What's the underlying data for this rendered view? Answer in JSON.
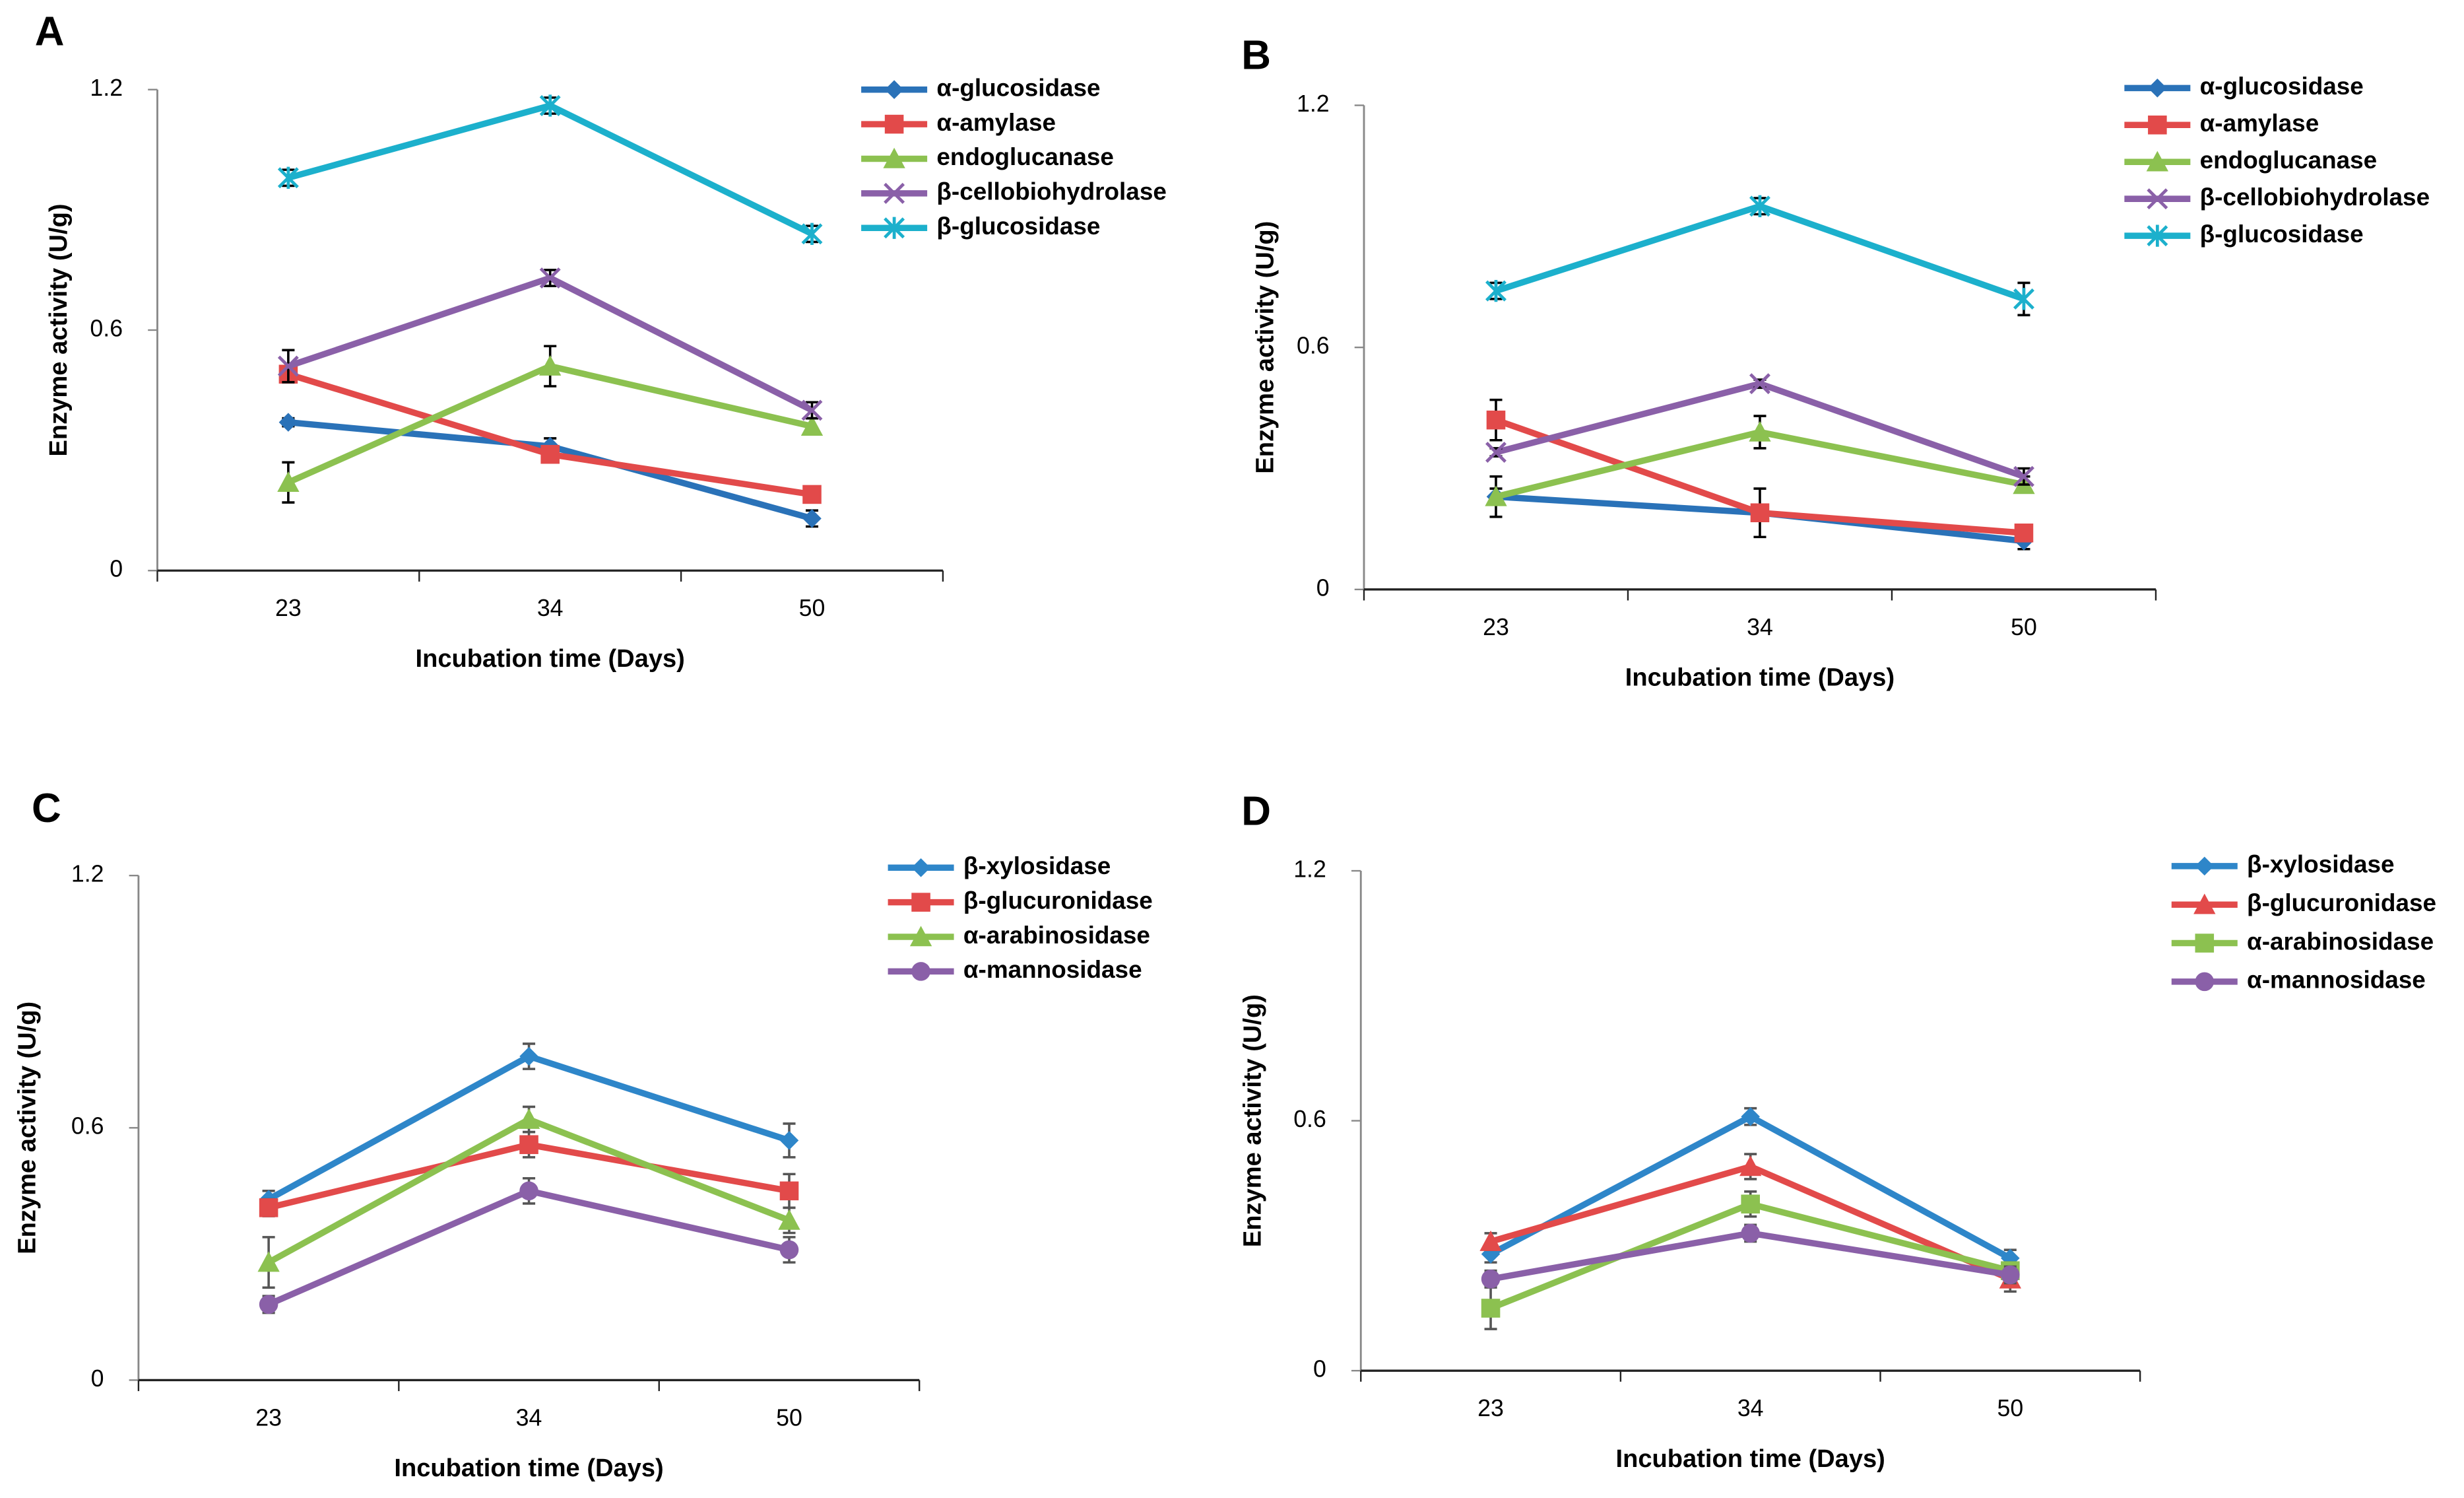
{
  "chart_data": [
    {
      "type": "line",
      "panel": "A",
      "x_label": "Incubation time (Days)",
      "y_label": "Enzyme activity (U/g)",
      "categories": [
        "23",
        "34",
        "50"
      ],
      "ylim": [
        0,
        1.2
      ],
      "yticks": [
        0,
        0.6,
        1.2
      ],
      "error_color": "#000000",
      "series": [
        {
          "name": "α-glucosidase",
          "color": "#2a72b8",
          "marker": "diamond",
          "values": [
            0.37,
            0.31,
            0.13
          ],
          "errors": [
            0.01,
            0.02,
            0.02
          ]
        },
        {
          "name": "α-amylase",
          "color": "#e24a4a",
          "marker": "square",
          "values": [
            0.49,
            0.29,
            0.19
          ],
          "errors": [
            0.02,
            0.01,
            0.02
          ]
        },
        {
          "name": "endoglucanase",
          "color": "#8cc150",
          "marker": "triangle",
          "values": [
            0.22,
            0.51,
            0.36
          ],
          "errors": [
            0.05,
            0.05,
            0.02
          ]
        },
        {
          "name": "β-cellobiohydrolase",
          "color": "#8a60a8",
          "marker": "x",
          "values": [
            0.51,
            0.73,
            0.4
          ],
          "errors": [
            0.04,
            0.02,
            0.02
          ]
        },
        {
          "name": "β-glucosidase",
          "color": "#1cb0cc",
          "marker": "star",
          "values": [
            0.98,
            1.16,
            0.84
          ],
          "errors": [
            0.02,
            0.02,
            0.02
          ]
        }
      ]
    },
    {
      "type": "line",
      "panel": "B",
      "x_label": "Incubation time (Days)",
      "y_label": "Enzyme activity (U/g)",
      "categories": [
        "23",
        "34",
        "50"
      ],
      "ylim": [
        0,
        1.2
      ],
      "yticks": [
        0,
        0.6,
        1.2
      ],
      "error_color": "#000000",
      "series": [
        {
          "name": "α-glucosidase",
          "color": "#2a72b8",
          "marker": "diamond",
          "values": [
            0.23,
            0.19,
            0.12
          ],
          "errors": [
            0.05,
            0.02,
            0.02
          ]
        },
        {
          "name": "α-amylase",
          "color": "#e24a4a",
          "marker": "square",
          "values": [
            0.42,
            0.19,
            0.14
          ],
          "errors": [
            0.05,
            0.06,
            0.02
          ]
        },
        {
          "name": "endoglucanase",
          "color": "#8cc150",
          "marker": "triangle",
          "values": [
            0.23,
            0.39,
            0.26
          ],
          "errors": [
            0.02,
            0.04,
            0.02
          ]
        },
        {
          "name": "β-cellobiohydrolase",
          "color": "#8a60a8",
          "marker": "x",
          "values": [
            0.34,
            0.51,
            0.28
          ],
          "errors": [
            0.01,
            0.01,
            0.02
          ]
        },
        {
          "name": "β-glucosidase",
          "color": "#1cb0cc",
          "marker": "star",
          "values": [
            0.74,
            0.95,
            0.72
          ],
          "errors": [
            0.02,
            0.02,
            0.04
          ]
        }
      ]
    },
    {
      "type": "line",
      "panel": "C",
      "x_label": "Incubation time (Days)",
      "y_label": "Enzyme activity (U/g)",
      "categories": [
        "23",
        "34",
        "50"
      ],
      "ylim": [
        0,
        1.2
      ],
      "yticks": [
        0,
        0.6,
        1.2
      ],
      "error_color": "#555555",
      "series": [
        {
          "name": "β-xylosidase",
          "color": "#2e86c9",
          "marker": "diamond",
          "values": [
            0.43,
            0.77,
            0.57
          ],
          "errors": [
            0.02,
            0.03,
            0.04
          ]
        },
        {
          "name": "β-glucuronidase",
          "color": "#e24a4a",
          "marker": "square",
          "values": [
            0.41,
            0.56,
            0.45
          ],
          "errors": [
            0.02,
            0.03,
            0.04
          ]
        },
        {
          "name": "α-arabinosidase",
          "color": "#8cc150",
          "marker": "triangle",
          "values": [
            0.28,
            0.62,
            0.38
          ],
          "errors": [
            0.06,
            0.03,
            0.03
          ]
        },
        {
          "name": "α-mannosidase",
          "color": "#8a60a8",
          "marker": "circle",
          "values": [
            0.18,
            0.45,
            0.31
          ],
          "errors": [
            0.02,
            0.03,
            0.03
          ]
        }
      ]
    },
    {
      "type": "line",
      "panel": "D",
      "x_label": "Incubation time (Days)",
      "y_label": "Enzyme activity (U/g)",
      "categories": [
        "23",
        "34",
        "50"
      ],
      "ylim": [
        0,
        1.2
      ],
      "yticks": [
        0,
        0.6,
        1.2
      ],
      "error_color": "#555555",
      "series": [
        {
          "name": "β-xylosidase",
          "color": "#2e86c9",
          "marker": "diamond",
          "values": [
            0.28,
            0.61,
            0.27
          ],
          "errors": [
            0.02,
            0.02,
            0.02
          ]
        },
        {
          "name": "β-glucuronidase",
          "color": "#e24a4a",
          "marker": "triangle",
          "values": [
            0.31,
            0.49,
            0.22
          ],
          "errors": [
            0.02,
            0.03,
            0.03
          ]
        },
        {
          "name": "α-arabinosidase",
          "color": "#8cc150",
          "marker": "square",
          "values": [
            0.15,
            0.4,
            0.24
          ],
          "errors": [
            0.05,
            0.03,
            0.02
          ]
        },
        {
          "name": "α-mannosidase",
          "color": "#8a60a8",
          "marker": "circle",
          "values": [
            0.22,
            0.33,
            0.23
          ],
          "errors": [
            0.02,
            0.02,
            0.02
          ]
        }
      ]
    }
  ]
}
